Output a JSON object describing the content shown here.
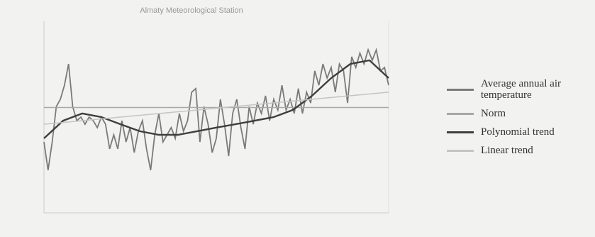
{
  "chart_data": {
    "type": "line",
    "title": "Almaty Meteorological Station",
    "ylim": [
      5,
      13
    ],
    "series": [
      {
        "name": "Average annual air temperature",
        "color": "#7a7a7a",
        "values": [
          7.96,
          6.78,
          7.96,
          9.44,
          9.74,
          10.33,
          11.22,
          9.44,
          8.85,
          9.0,
          8.7,
          9.0,
          8.85,
          8.56,
          9.0,
          8.7,
          7.67,
          8.26,
          7.67,
          8.85,
          7.96,
          8.56,
          7.52,
          8.41,
          8.85,
          7.67,
          6.78,
          8.26,
          9.15,
          7.96,
          8.26,
          8.56,
          8.11,
          9.15,
          8.41,
          8.85,
          10.04,
          10.19,
          7.96,
          9.44,
          8.7,
          7.52,
          8.11,
          9.74,
          8.7,
          7.37,
          9.15,
          9.74,
          8.56,
          7.67,
          9.44,
          8.7,
          9.59,
          9.15,
          9.89,
          8.85,
          9.74,
          9.3,
          10.33,
          9.3,
          9.74,
          9.15,
          10.19,
          9.15,
          10.04,
          9.59,
          10.93,
          10.33,
          11.22,
          10.63,
          11.07,
          10.04,
          11.22,
          10.93,
          9.59,
          11.52,
          11.07,
          11.67,
          11.22,
          11.81,
          11.37,
          11.81,
          10.93,
          11.07,
          10.33
        ]
      },
      {
        "name": "Norm",
        "color": "#a8a8a8",
        "values": [
          9.4,
          9.4
        ]
      },
      {
        "name": "Polynomial trend",
        "color": "#3e3e3e",
        "values": [
          8.11,
          8.85,
          9.15,
          9.0,
          8.7,
          8.41,
          8.26,
          8.26,
          8.41,
          8.56,
          8.7,
          8.85,
          9.0,
          9.3,
          9.89,
          10.63,
          11.22,
          11.37,
          10.63
        ]
      },
      {
        "name": "Linear trend",
        "color": "#c4c4c4",
        "values": [
          8.7,
          10.04
        ]
      }
    ]
  }
}
